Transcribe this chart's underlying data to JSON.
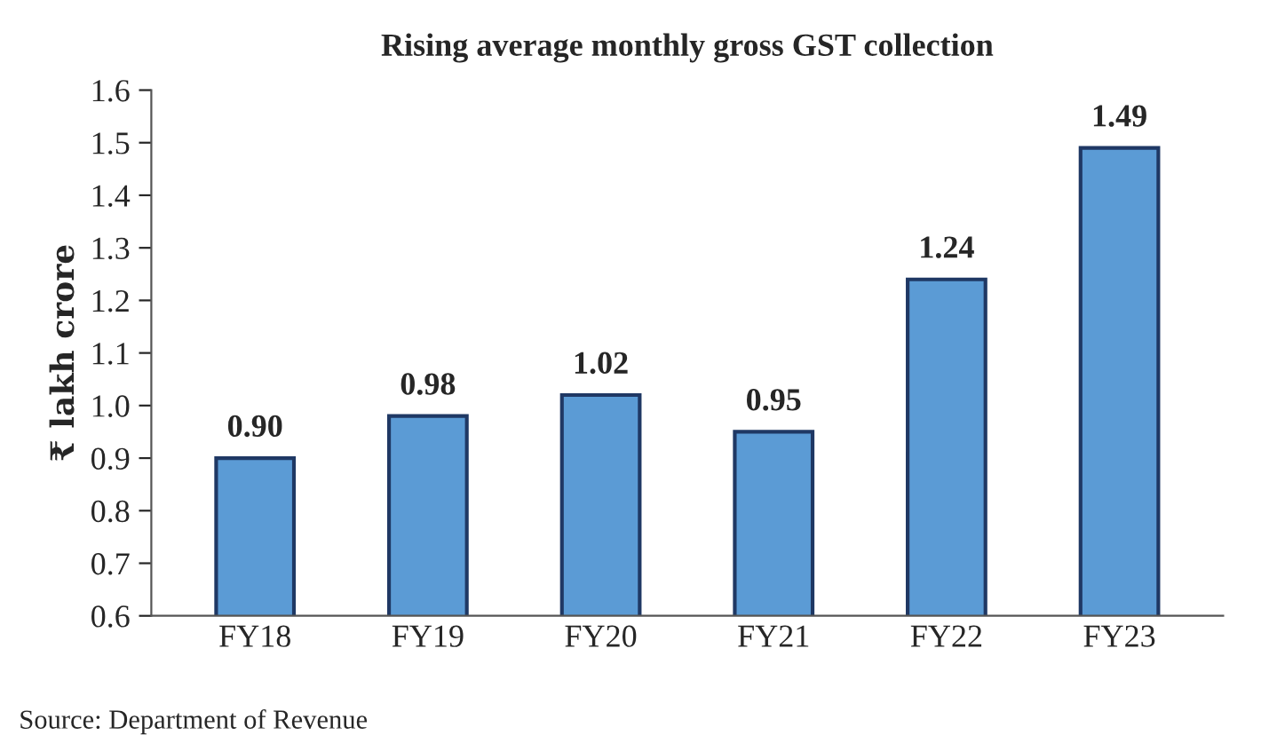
{
  "chart_data": {
    "type": "bar",
    "title": "Rising average monthly gross GST collection",
    "ylabel": "₹ lakh crore",
    "categories": [
      "FY18",
      "FY19",
      "FY20",
      "FY21",
      "FY22",
      "FY23"
    ],
    "values": [
      0.9,
      0.98,
      1.02,
      0.95,
      1.24,
      1.49
    ],
    "color": "#5b9bd5",
    "ylim": [
      0.6,
      1.6
    ],
    "yticks": [
      "0.6",
      "0.7",
      "0.8",
      "0.9",
      "1.0",
      "1.1",
      "1.2",
      "1.3",
      "1.4",
      "1.5",
      "1.6"
    ],
    "value_labels": [
      "0.90",
      "0.98",
      "1.02",
      "0.95",
      "1.24",
      "1.49"
    ],
    "grid": false,
    "legend": false,
    "annotations": [
      "Source: Department of Revenue"
    ]
  }
}
